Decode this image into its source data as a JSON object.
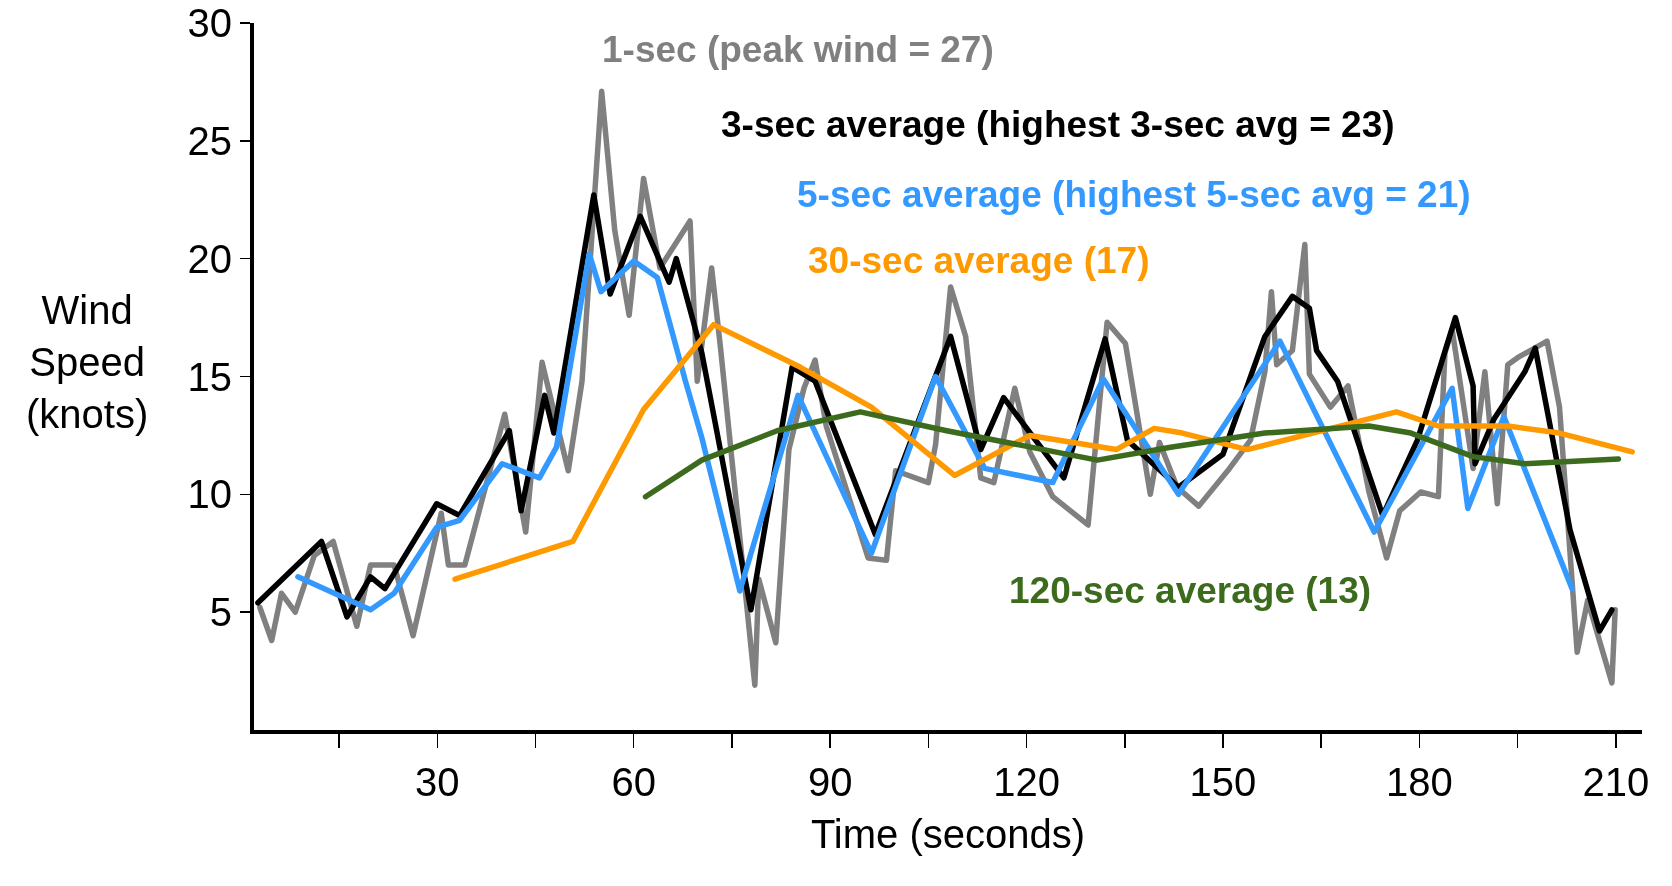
{
  "chart_data": {
    "type": "line",
    "xlabel": "Time (seconds)",
    "ylabel": "Wind Speed (knots)",
    "xlim": [
      2,
      214
    ],
    "ylim": [
      0,
      30
    ],
    "xticks": [
      {
        "value": 15,
        "label": null
      },
      30,
      {
        "value": 45,
        "label": null
      },
      60,
      {
        "value": 75,
        "label": null
      },
      90,
      {
        "value": 105,
        "label": null
      },
      120,
      {
        "value": 135,
        "label": null
      },
      150,
      {
        "value": 165,
        "label": null
      },
      180,
      {
        "value": 195,
        "label": null
      },
      210
    ],
    "yticks": [
      5,
      10,
      15,
      20,
      25,
      30
    ],
    "grid": false,
    "legend": false,
    "marker": "none",
    "line_style": "solid",
    "series": [
      {
        "name": "1-sec (peak wind = 27)",
        "color": "#808080",
        "x": [
          2.9,
          4.7,
          6.2,
          8.3,
          11.2,
          14.1,
          17.7,
          19.8,
          23.4,
          26.3,
          30.6,
          31.7,
          34.2,
          36.3,
          40.3,
          43.5,
          46,
          50,
          52.1,
          55.1,
          57.1,
          59.3,
          61.5,
          64,
          68.6,
          69.7,
          71.9,
          73.3,
          78.5,
          79.1,
          81.7,
          83.7,
          86,
          87.7,
          89.4,
          95.8,
          98.6,
          100,
          105,
          106.1,
          108.4,
          110.7,
          113,
          115,
          118.2,
          120.5,
          124,
          129.4,
          132.3,
          135.1,
          138.9,
          140.3,
          143,
          146.3,
          151,
          154.2,
          156.4,
          157.4,
          158.2,
          160.6,
          162.5,
          163.2,
          166.4,
          169.1,
          172.3,
          175,
          177,
          180.2,
          182.9,
          183.9,
          185,
          188.2,
          190,
          191.9,
          193.5,
          195,
          199.5,
          201.4,
          204.1,
          205.7,
          209.4,
          209.9
        ],
        "values": [
          5.2,
          3.8,
          5.8,
          5,
          7.4,
          8,
          4.4,
          7,
          7,
          4,
          9.2,
          7,
          7,
          9.2,
          13.4,
          8.4,
          15.6,
          11,
          14.8,
          27.1,
          21.2,
          17.6,
          23.4,
          19.6,
          21.6,
          14.8,
          19.6,
          16.1,
          1.9,
          6.4,
          3.7,
          11.9,
          14.5,
          15.7,
          12.9,
          7.3,
          7.2,
          11,
          10.5,
          12.1,
          18.8,
          16.7,
          10.7,
          10.5,
          14.5,
          11.8,
          9.9,
          8.7,
          17.3,
          16.4,
          10,
          12.2,
          10.3,
          9.5,
          11.1,
          12.3,
          15.2,
          18.6,
          15.5,
          16.1,
          20.6,
          15.1,
          13.7,
          14.6,
          10.1,
          7.3,
          9.3,
          10.1,
          9.9,
          16,
          17,
          11.1,
          15.2,
          9.6,
          15.5,
          15.8,
          16.5,
          13.7,
          3.3,
          5.5,
          2,
          5.1
        ]
      },
      {
        "name": "3-sec average (highest 3-sec avg = 23)",
        "color": "#000000",
        "x": [
          2.6,
          12.3,
          16.2,
          19.8,
          22,
          29.9,
          33.4,
          41,
          42.8,
          46.4,
          47.8,
          53.9,
          56.4,
          61,
          65.4,
          66.5,
          70.4,
          77.9,
          84.2,
          87.7,
          96.9,
          108.4,
          113,
          116.5,
          125.7,
          132,
          135.4,
          143.2,
          150,
          156.4,
          160.6,
          163.2,
          164.3,
          167.5,
          174.4,
          179.7,
          185.5,
          188.2,
          188.5,
          191.4,
          196.1,
          197.7,
          203,
          207.5,
          209.4
        ],
        "values": [
          5.4,
          8,
          4.8,
          6.5,
          6,
          9.6,
          9.1,
          12.7,
          9.3,
          14.2,
          12.6,
          22.7,
          18.5,
          21.8,
          19,
          20,
          16,
          5.1,
          15.4,
          14.8,
          8.3,
          16.7,
          11.9,
          14.1,
          10.7,
          16.6,
          12.3,
          10.3,
          11.7,
          16.7,
          18.4,
          17.9,
          16.1,
          14.8,
          9.1,
          12.3,
          17.5,
          14.6,
          11.3,
          13.2,
          15.2,
          16.2,
          8.5,
          4.2,
          5.1
        ]
      },
      {
        "name": "5-sec average (highest 5-sec avg = 21)",
        "color": "#3399ff",
        "x": [
          8.7,
          19.8,
          23.4,
          29.9,
          33.4,
          39.9,
          45.6,
          48.2,
          53.2,
          55,
          60,
          63.6,
          67.9,
          70.4,
          76.2,
          85.1,
          96.3,
          106.1,
          113.6,
          124,
          131.7,
          143.2,
          158.7,
          173.1,
          185,
          187.4,
          192.9,
          203.3
        ],
        "values": [
          6.5,
          5.1,
          5.8,
          8.6,
          8.9,
          11.3,
          10.7,
          12,
          20.2,
          18.6,
          19.9,
          19.2,
          14.8,
          12.4,
          5.9,
          14.2,
          7.5,
          15,
          11.1,
          10.5,
          14.9,
          10,
          16.5,
          8.4,
          14.5,
          9.4,
          13.3,
          6
        ]
      },
      {
        "name": "30-sec average (17)",
        "color": "#ff9900",
        "x": [
          32.7,
          50.7,
          61.5,
          72.2,
          85.4,
          96.3,
          109,
          120.5,
          133.7,
          139.5,
          143.8,
          153.7,
          176.5,
          182.9,
          193.5,
          201.4,
          212.5
        ],
        "values": [
          6.4,
          8,
          13.6,
          17.2,
          15.4,
          13.7,
          10.8,
          12.5,
          11.9,
          12.8,
          12.6,
          11.9,
          13.5,
          12.9,
          12.9,
          12.6,
          11.8
        ]
      },
      {
        "name": "120-sec average (13)",
        "color": "#3d6b1e",
        "x": [
          61.8,
          70.4,
          81.9,
          94.6,
          107.8,
          130.8,
          142,
          156.4,
          172.3,
          178.7,
          188.2,
          196.1,
          210.4
        ],
        "values": [
          9.9,
          11.45,
          12.7,
          13.5,
          12.7,
          11.45,
          12,
          12.6,
          12.9,
          12.6,
          11.6,
          11.3,
          11.5
        ]
      }
    ]
  }
}
